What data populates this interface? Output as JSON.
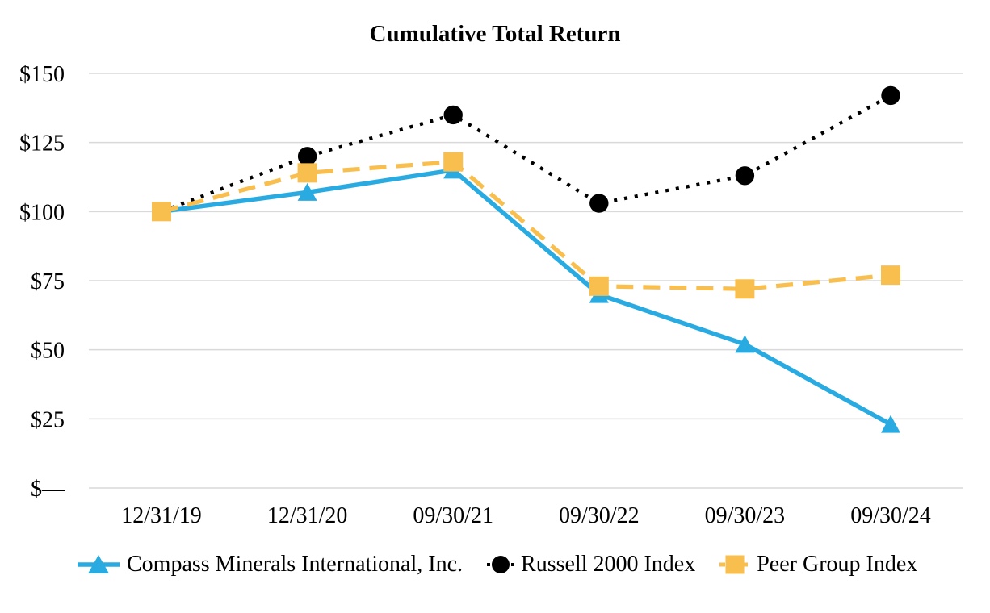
{
  "chart_data": {
    "type": "line",
    "title": "Cumulative Total Return",
    "x_categories": [
      "12/31/19",
      "12/31/20",
      "09/30/21",
      "09/30/22",
      "09/30/23",
      "09/30/24"
    ],
    "y_tick_labels": [
      "$150",
      "$125",
      "$100",
      "$75",
      "$50",
      "$25",
      "$—"
    ],
    "y_tick_values": [
      150,
      125,
      100,
      75,
      50,
      25,
      0
    ],
    "ylim": [
      0,
      150
    ],
    "grid": true,
    "gridline_color": "#D9D9D9",
    "text_color": "#000000",
    "legend_position": "bottom",
    "series": [
      {
        "name": "Compass Minerals International, Inc.",
        "color": "#29ABE2",
        "marker": "triangle",
        "line_style": "solid",
        "values": [
          100,
          107,
          115,
          70,
          52,
          23
        ]
      },
      {
        "name": "Russell 2000 Index",
        "color": "#000000",
        "marker": "circle",
        "line_style": "dotted",
        "values": [
          100,
          120,
          135,
          103,
          113,
          142
        ]
      },
      {
        "name": "Peer Group Index",
        "color": "#F9BF4E",
        "marker": "square",
        "line_style": "dashed",
        "values": [
          100,
          114,
          118,
          73,
          72,
          77
        ]
      }
    ]
  }
}
